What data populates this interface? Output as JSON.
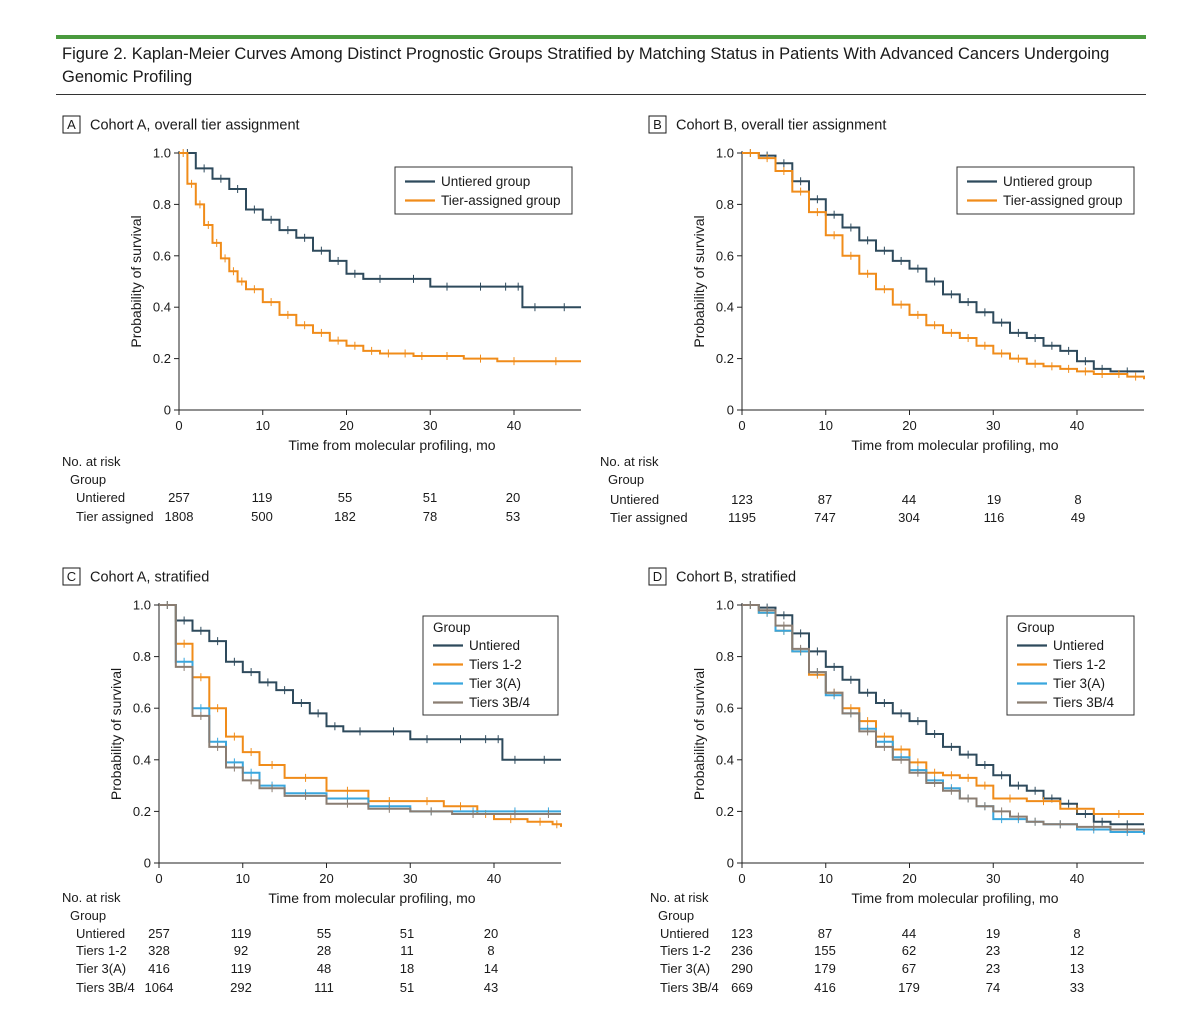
{
  "figure_title": "Figure 2. Kaplan-Meier Curves Among Distinct Prognostic Groups Stratified by Matching Status in Patients With Advanced Cancers Undergoing Genomic Profiling",
  "colors": {
    "Untiered": "#2e4a5c",
    "Tier-assigned": "#f08c1a",
    "Tiers 1-2": "#f08c1a",
    "Tier 3(A)": "#3aa6dd",
    "Tiers 3B/4": "#8a7d72"
  },
  "chart_data": [
    {
      "panel": "A",
      "type": "line",
      "title": "Cohort A, overall tier assignment",
      "xlabel": "Time from molecular profiling, mo",
      "ylabel": "Probability of survival",
      "xlim": [
        0,
        48
      ],
      "ylim": [
        0,
        1.0
      ],
      "xticks": [
        "0",
        "10",
        "20",
        "30",
        "40"
      ],
      "yticks": [
        "0",
        "0.2",
        "0.4",
        "0.6",
        "0.8",
        "1.0"
      ],
      "legend_title": "",
      "series": [
        {
          "name": "Untiered group",
          "color": "#2e4a5c",
          "x": [
            0,
            2,
            4,
            6,
            8,
            10,
            12,
            14,
            16,
            18,
            20,
            22,
            26,
            30,
            34,
            38,
            40,
            41,
            44,
            48
          ],
          "y": [
            1.0,
            0.94,
            0.9,
            0.86,
            0.78,
            0.74,
            0.7,
            0.67,
            0.62,
            0.58,
            0.53,
            0.51,
            0.51,
            0.48,
            0.48,
            0.48,
            0.48,
            0.4,
            0.4,
            0.4
          ]
        },
        {
          "name": "Tier-assigned group",
          "color": "#f08c1a",
          "x": [
            0,
            1,
            2,
            3,
            4,
            5,
            6,
            7,
            8,
            10,
            12,
            14,
            16,
            18,
            20,
            22,
            24,
            26,
            28,
            30,
            34,
            38,
            42,
            48
          ],
          "y": [
            1.0,
            0.88,
            0.8,
            0.72,
            0.65,
            0.59,
            0.54,
            0.5,
            0.47,
            0.42,
            0.37,
            0.33,
            0.3,
            0.27,
            0.25,
            0.23,
            0.22,
            0.22,
            0.21,
            0.21,
            0.2,
            0.19,
            0.19,
            0.19
          ]
        }
      ],
      "risk_title": [
        "No. at risk",
        "Group"
      ],
      "risk_rows": [
        {
          "label": "Untiered",
          "values": [
            "257",
            "119",
            "55",
            "51",
            "20"
          ]
        },
        {
          "label": "Tier assigned",
          "values": [
            "1808",
            "500",
            "182",
            "78",
            "53"
          ]
        }
      ]
    },
    {
      "panel": "B",
      "type": "line",
      "title": "Cohort B, overall tier assignment",
      "xlabel": "Time from molecular profiling, mo",
      "ylabel": "Probability of survival",
      "xlim": [
        0,
        48
      ],
      "ylim": [
        0,
        1.0
      ],
      "xticks": [
        "0",
        "10",
        "20",
        "30",
        "40"
      ],
      "yticks": [
        "0",
        "0.2",
        "0.4",
        "0.6",
        "0.8",
        "1.0"
      ],
      "legend_title": "",
      "series": [
        {
          "name": "Untiered group",
          "color": "#2e4a5c",
          "x": [
            0,
            2,
            4,
            6,
            8,
            10,
            12,
            14,
            16,
            18,
            20,
            22,
            24,
            26,
            28,
            30,
            32,
            34,
            36,
            38,
            40,
            42,
            44,
            48
          ],
          "y": [
            1.0,
            0.99,
            0.96,
            0.89,
            0.82,
            0.76,
            0.71,
            0.66,
            0.62,
            0.58,
            0.55,
            0.5,
            0.45,
            0.42,
            0.38,
            0.34,
            0.3,
            0.28,
            0.25,
            0.23,
            0.19,
            0.16,
            0.15,
            0.15
          ]
        },
        {
          "name": "Tier-assigned group",
          "color": "#f08c1a",
          "x": [
            0,
            2,
            4,
            6,
            8,
            10,
            12,
            14,
            16,
            18,
            20,
            22,
            24,
            26,
            28,
            30,
            32,
            34,
            36,
            38,
            40,
            42,
            44,
            46,
            48
          ],
          "y": [
            1.0,
            0.98,
            0.93,
            0.85,
            0.77,
            0.68,
            0.6,
            0.53,
            0.47,
            0.41,
            0.37,
            0.33,
            0.3,
            0.28,
            0.25,
            0.22,
            0.2,
            0.18,
            0.17,
            0.16,
            0.15,
            0.14,
            0.14,
            0.13,
            0.12
          ]
        }
      ],
      "risk_title": [
        "No. at risk",
        "Group"
      ],
      "risk_rows": [
        {
          "label": "Untiered",
          "values": [
            "123",
            "87",
            "44",
            "19",
            "8"
          ]
        },
        {
          "label": "Tier assigned",
          "values": [
            "1195",
            "747",
            "304",
            "116",
            "49"
          ]
        }
      ]
    },
    {
      "panel": "C",
      "type": "line",
      "title": "Cohort A, stratified",
      "xlabel": "Time from molecular profiling, mo",
      "ylabel": "Probability of survival",
      "xlim": [
        0,
        48
      ],
      "ylim": [
        0,
        1.0
      ],
      "xticks": [
        "0",
        "10",
        "20",
        "30",
        "40"
      ],
      "yticks": [
        "0",
        "0.2",
        "0.4",
        "0.6",
        "0.8",
        "1.0"
      ],
      "legend_title": "Group",
      "series": [
        {
          "name": "Untiered",
          "color": "#2e4a5c",
          "x": [
            0,
            2,
            4,
            6,
            8,
            10,
            12,
            14,
            16,
            18,
            20,
            22,
            26,
            30,
            34,
            38,
            40,
            41,
            44,
            48
          ],
          "y": [
            1.0,
            0.94,
            0.9,
            0.86,
            0.78,
            0.74,
            0.7,
            0.67,
            0.62,
            0.58,
            0.53,
            0.51,
            0.51,
            0.48,
            0.48,
            0.48,
            0.48,
            0.4,
            0.4,
            0.4
          ]
        },
        {
          "name": "Tiers 1-2",
          "color": "#f08c1a",
          "x": [
            0,
            2,
            4,
            6,
            8,
            10,
            12,
            15,
            20,
            25,
            30,
            34,
            38,
            40,
            44,
            47,
            48
          ],
          "y": [
            1.0,
            0.85,
            0.72,
            0.6,
            0.49,
            0.43,
            0.38,
            0.33,
            0.28,
            0.24,
            0.24,
            0.22,
            0.19,
            0.17,
            0.16,
            0.15,
            0.14
          ]
        },
        {
          "name": "Tier 3(A)",
          "color": "#3aa6dd",
          "x": [
            0,
            2,
            4,
            6,
            8,
            10,
            12,
            15,
            20,
            25,
            30,
            35,
            40,
            45,
            48
          ],
          "y": [
            1.0,
            0.78,
            0.6,
            0.47,
            0.39,
            0.35,
            0.3,
            0.27,
            0.25,
            0.22,
            0.2,
            0.2,
            0.2,
            0.2,
            0.2
          ]
        },
        {
          "name": "Tiers 3B/4",
          "color": "#8a7d72",
          "x": [
            0,
            2,
            4,
            6,
            8,
            10,
            12,
            15,
            20,
            25,
            30,
            35,
            40,
            45,
            48
          ],
          "y": [
            1.0,
            0.76,
            0.57,
            0.45,
            0.37,
            0.32,
            0.29,
            0.26,
            0.23,
            0.21,
            0.2,
            0.19,
            0.19,
            0.19,
            0.19
          ]
        }
      ],
      "risk_title": [
        "No. at risk",
        "Group"
      ],
      "risk_rows": [
        {
          "label": "Untiered",
          "values": [
            "257",
            "119",
            "55",
            "51",
            "20"
          ]
        },
        {
          "label": "Tiers 1-2",
          "values": [
            "328",
            "92",
            "28",
            "11",
            "8"
          ]
        },
        {
          "label": "Tier 3(A)",
          "values": [
            "416",
            "119",
            "48",
            "18",
            "14"
          ]
        },
        {
          "label": "Tiers 3B/4",
          "values": [
            "1064",
            "292",
            "111",
            "51",
            "43"
          ]
        }
      ]
    },
    {
      "panel": "D",
      "type": "line",
      "title": "Cohort B, stratified",
      "xlabel": "Time from molecular profiling, mo",
      "ylabel": "Probability of survival",
      "xlim": [
        0,
        48
      ],
      "ylim": [
        0,
        1.0
      ],
      "xticks": [
        "0",
        "10",
        "20",
        "30",
        "40"
      ],
      "yticks": [
        "0",
        "0.2",
        "0.4",
        "0.6",
        "0.8",
        "1.0"
      ],
      "legend_title": "Group",
      "series": [
        {
          "name": "Untiered",
          "color": "#2e4a5c",
          "x": [
            0,
            2,
            4,
            6,
            8,
            10,
            12,
            14,
            16,
            18,
            20,
            22,
            24,
            26,
            28,
            30,
            32,
            34,
            36,
            38,
            40,
            42,
            44,
            48
          ],
          "y": [
            1.0,
            0.99,
            0.96,
            0.89,
            0.82,
            0.76,
            0.71,
            0.66,
            0.62,
            0.58,
            0.55,
            0.5,
            0.45,
            0.42,
            0.38,
            0.34,
            0.3,
            0.28,
            0.25,
            0.23,
            0.19,
            0.16,
            0.15,
            0.15
          ]
        },
        {
          "name": "Tiers 1-2",
          "color": "#f08c1a",
          "x": [
            0,
            2,
            4,
            6,
            8,
            10,
            12,
            14,
            16,
            18,
            20,
            22,
            24,
            26,
            28,
            30,
            34,
            38,
            42,
            48
          ],
          "y": [
            1.0,
            0.97,
            0.9,
            0.82,
            0.73,
            0.66,
            0.6,
            0.55,
            0.49,
            0.44,
            0.39,
            0.35,
            0.34,
            0.33,
            0.3,
            0.25,
            0.24,
            0.21,
            0.19,
            0.19
          ]
        },
        {
          "name": "Tier 3(A)",
          "color": "#3aa6dd",
          "x": [
            0,
            2,
            4,
            6,
            8,
            10,
            12,
            14,
            16,
            18,
            20,
            22,
            24,
            26,
            28,
            30,
            32,
            34,
            36,
            40,
            44,
            48
          ],
          "y": [
            1.0,
            0.97,
            0.9,
            0.82,
            0.74,
            0.65,
            0.58,
            0.52,
            0.47,
            0.41,
            0.36,
            0.32,
            0.29,
            0.25,
            0.22,
            0.17,
            0.17,
            0.16,
            0.15,
            0.13,
            0.12,
            0.11
          ]
        },
        {
          "name": "Tiers 3B/4",
          "color": "#8a7d72",
          "x": [
            0,
            2,
            4,
            6,
            8,
            10,
            12,
            14,
            16,
            18,
            20,
            22,
            24,
            26,
            28,
            30,
            32,
            34,
            36,
            40,
            44,
            48
          ],
          "y": [
            1.0,
            0.98,
            0.92,
            0.83,
            0.74,
            0.66,
            0.58,
            0.51,
            0.45,
            0.4,
            0.35,
            0.31,
            0.28,
            0.25,
            0.22,
            0.2,
            0.18,
            0.16,
            0.15,
            0.14,
            0.13,
            0.12
          ]
        }
      ],
      "risk_title": [
        "No. at risk",
        "Group"
      ],
      "risk_rows": [
        {
          "label": "Untiered",
          "values": [
            "123",
            "87",
            "44",
            "19",
            "8"
          ]
        },
        {
          "label": "Tiers 1-2",
          "values": [
            "236",
            "155",
            "62",
            "23",
            "12"
          ]
        },
        {
          "label": "Tier 3(A)",
          "values": [
            "290",
            "179",
            "67",
            "23",
            "13"
          ]
        },
        {
          "label": "Tiers 3B/4",
          "values": [
            "669",
            "416",
            "179",
            "74",
            "33"
          ]
        }
      ]
    }
  ]
}
